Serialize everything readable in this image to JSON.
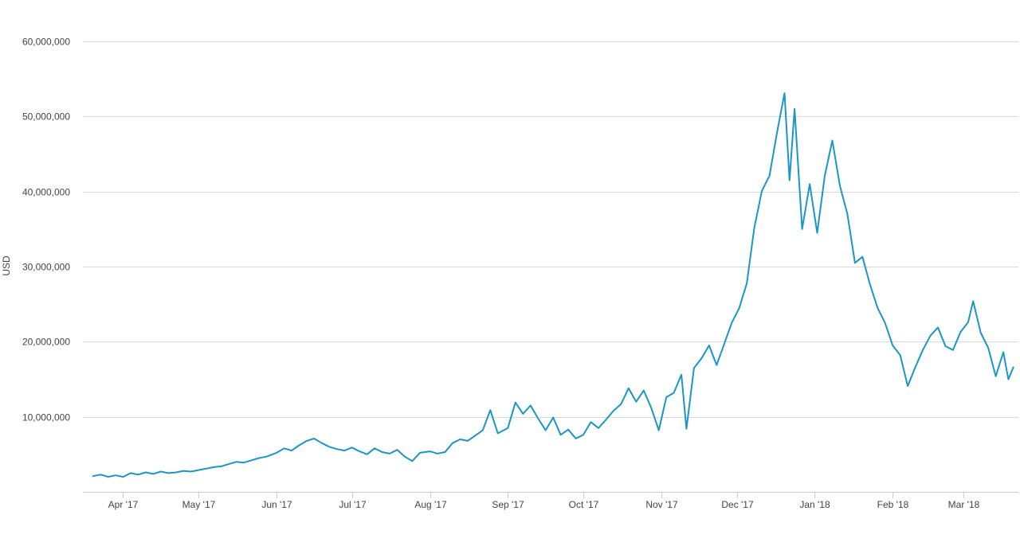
{
  "chart_data": {
    "type": "line",
    "title": "",
    "xlabel": "",
    "ylabel": "USD",
    "ylim": [
      0,
      60000000
    ],
    "y_ticks": [
      {
        "value": 10000000,
        "label": "10,000,000"
      },
      {
        "value": 20000000,
        "label": "20,000,000"
      },
      {
        "value": 30000000,
        "label": "30,000,000"
      },
      {
        "value": 40000000,
        "label": "40,000,000"
      },
      {
        "value": 50000000,
        "label": "50,000,000"
      },
      {
        "value": 60000000,
        "label": "60,000,000"
      }
    ],
    "xlim": [
      "2017-03-16",
      "2018-03-23"
    ],
    "x_ticks": [
      {
        "date": "2017-04-01",
        "label": "Apr '17"
      },
      {
        "date": "2017-05-01",
        "label": "May '17"
      },
      {
        "date": "2017-06-01",
        "label": "Jun '17"
      },
      {
        "date": "2017-07-01",
        "label": "Jul '17"
      },
      {
        "date": "2017-08-01",
        "label": "Aug '17"
      },
      {
        "date": "2017-09-01",
        "label": "Sep '17"
      },
      {
        "date": "2017-10-01",
        "label": "Oct '17"
      },
      {
        "date": "2017-11-01",
        "label": "Nov '17"
      },
      {
        "date": "2017-12-01",
        "label": "Dec '17"
      },
      {
        "date": "2018-01-01",
        "label": "Jan '18"
      },
      {
        "date": "2018-02-01",
        "label": "Feb '18"
      },
      {
        "date": "2018-03-01",
        "label": "Mar '18"
      }
    ],
    "grid": true,
    "colors": {
      "line": "#1a96c8",
      "grid": "#d9d9d9",
      "text": "#444444"
    },
    "series": [
      {
        "points": [
          [
            "2017-03-20",
            2100000
          ],
          [
            "2017-03-23",
            2300000
          ],
          [
            "2017-03-26",
            2000000
          ],
          [
            "2017-03-29",
            2200000
          ],
          [
            "2017-04-01",
            2000000
          ],
          [
            "2017-04-04",
            2500000
          ],
          [
            "2017-04-07",
            2300000
          ],
          [
            "2017-04-10",
            2600000
          ],
          [
            "2017-04-13",
            2400000
          ],
          [
            "2017-04-16",
            2700000
          ],
          [
            "2017-04-19",
            2500000
          ],
          [
            "2017-04-22",
            2600000
          ],
          [
            "2017-04-25",
            2800000
          ],
          [
            "2017-04-28",
            2700000
          ],
          [
            "2017-05-01",
            2900000
          ],
          [
            "2017-05-04",
            3100000
          ],
          [
            "2017-05-07",
            3300000
          ],
          [
            "2017-05-10",
            3400000
          ],
          [
            "2017-05-13",
            3700000
          ],
          [
            "2017-05-16",
            4000000
          ],
          [
            "2017-05-19",
            3900000
          ],
          [
            "2017-05-22",
            4200000
          ],
          [
            "2017-05-25",
            4500000
          ],
          [
            "2017-05-28",
            4700000
          ],
          [
            "2017-06-01",
            5200000
          ],
          [
            "2017-06-04",
            5800000
          ],
          [
            "2017-06-07",
            5500000
          ],
          [
            "2017-06-10",
            6200000
          ],
          [
            "2017-06-13",
            6800000
          ],
          [
            "2017-06-16",
            7100000
          ],
          [
            "2017-06-19",
            6500000
          ],
          [
            "2017-06-22",
            6000000
          ],
          [
            "2017-06-25",
            5700000
          ],
          [
            "2017-06-28",
            5500000
          ],
          [
            "2017-07-01",
            5900000
          ],
          [
            "2017-07-04",
            5400000
          ],
          [
            "2017-07-07",
            5000000
          ],
          [
            "2017-07-10",
            5800000
          ],
          [
            "2017-07-13",
            5300000
          ],
          [
            "2017-07-16",
            5100000
          ],
          [
            "2017-07-19",
            5600000
          ],
          [
            "2017-07-22",
            4700000
          ],
          [
            "2017-07-25",
            4100000
          ],
          [
            "2017-07-28",
            5200000
          ],
          [
            "2017-08-01",
            5400000
          ],
          [
            "2017-08-04",
            5100000
          ],
          [
            "2017-08-07",
            5300000
          ],
          [
            "2017-08-10",
            6500000
          ],
          [
            "2017-08-13",
            7000000
          ],
          [
            "2017-08-16",
            6800000
          ],
          [
            "2017-08-19",
            7500000
          ],
          [
            "2017-08-22",
            8200000
          ],
          [
            "2017-08-25",
            10900000
          ],
          [
            "2017-08-28",
            7800000
          ],
          [
            "2017-09-01",
            8500000
          ],
          [
            "2017-09-04",
            11900000
          ],
          [
            "2017-09-07",
            10400000
          ],
          [
            "2017-09-10",
            11500000
          ],
          [
            "2017-09-13",
            9800000
          ],
          [
            "2017-09-16",
            8200000
          ],
          [
            "2017-09-19",
            9900000
          ],
          [
            "2017-09-22",
            7600000
          ],
          [
            "2017-09-25",
            8300000
          ],
          [
            "2017-09-28",
            7100000
          ],
          [
            "2017-10-01",
            7600000
          ],
          [
            "2017-10-04",
            9300000
          ],
          [
            "2017-10-07",
            8500000
          ],
          [
            "2017-10-10",
            9600000
          ],
          [
            "2017-10-13",
            10800000
          ],
          [
            "2017-10-16",
            11700000
          ],
          [
            "2017-10-19",
            13800000
          ],
          [
            "2017-10-22",
            12000000
          ],
          [
            "2017-10-25",
            13500000
          ],
          [
            "2017-10-28",
            11200000
          ],
          [
            "2017-10-31",
            8200000
          ],
          [
            "2017-11-03",
            12600000
          ],
          [
            "2017-11-06",
            13200000
          ],
          [
            "2017-11-09",
            15600000
          ],
          [
            "2017-11-11",
            8400000
          ],
          [
            "2017-11-14",
            16500000
          ],
          [
            "2017-11-17",
            17800000
          ],
          [
            "2017-11-20",
            19500000
          ],
          [
            "2017-11-23",
            16900000
          ],
          [
            "2017-11-26",
            19700000
          ],
          [
            "2017-11-29",
            22500000
          ],
          [
            "2017-12-02",
            24500000
          ],
          [
            "2017-12-05",
            27800000
          ],
          [
            "2017-12-08",
            35200000
          ],
          [
            "2017-12-11",
            40100000
          ],
          [
            "2017-12-14",
            42100000
          ],
          [
            "2017-12-17",
            47800000
          ],
          [
            "2017-12-20",
            53100000
          ],
          [
            "2017-12-22",
            41500000
          ],
          [
            "2017-12-24",
            51000000
          ],
          [
            "2017-12-27",
            35000000
          ],
          [
            "2017-12-30",
            41000000
          ],
          [
            "2018-01-02",
            34500000
          ],
          [
            "2018-01-05",
            42100000
          ],
          [
            "2018-01-08",
            46800000
          ],
          [
            "2018-01-11",
            40800000
          ],
          [
            "2018-01-14",
            37000000
          ],
          [
            "2018-01-17",
            30500000
          ],
          [
            "2018-01-20",
            31300000
          ],
          [
            "2018-01-23",
            27600000
          ],
          [
            "2018-01-26",
            24500000
          ],
          [
            "2018-01-29",
            22500000
          ],
          [
            "2018-02-01",
            19500000
          ],
          [
            "2018-02-04",
            18200000
          ],
          [
            "2018-02-07",
            14100000
          ],
          [
            "2018-02-10",
            16600000
          ],
          [
            "2018-02-13",
            18900000
          ],
          [
            "2018-02-16",
            20800000
          ],
          [
            "2018-02-19",
            21900000
          ],
          [
            "2018-02-22",
            19400000
          ],
          [
            "2018-02-25",
            18900000
          ],
          [
            "2018-02-28",
            21300000
          ],
          [
            "2018-03-03",
            22600000
          ],
          [
            "2018-03-05",
            25400000
          ],
          [
            "2018-03-08",
            21200000
          ],
          [
            "2018-03-11",
            19200000
          ],
          [
            "2018-03-14",
            15400000
          ],
          [
            "2018-03-17",
            18600000
          ],
          [
            "2018-03-19",
            15000000
          ],
          [
            "2018-03-21",
            16600000
          ]
        ]
      }
    ]
  }
}
